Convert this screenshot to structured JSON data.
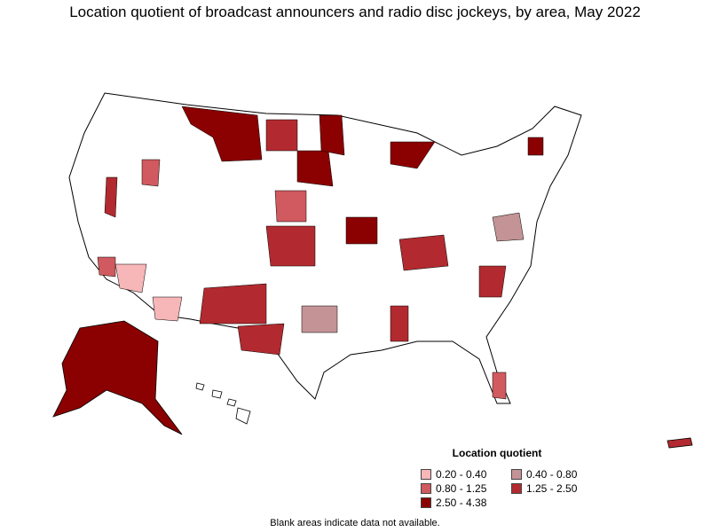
{
  "title": "Location quotient of broadcast announcers and radio disc jockeys, by area, May 2022",
  "legend": {
    "title": "Location quotient",
    "items": [
      {
        "label": "0.20 - 0.40",
        "color": "#f7b6b8"
      },
      {
        "label": "0.40 - 0.80",
        "color": "#c49396"
      },
      {
        "label": "0.80 - 1.25",
        "color": "#d05a5f"
      },
      {
        "label": "1.25 - 2.50",
        "color": "#b22a2f"
      },
      {
        "label": "2.50 - 4.38",
        "color": "#8b0000"
      }
    ]
  },
  "footnote": "Blank areas indicate data not available."
}
